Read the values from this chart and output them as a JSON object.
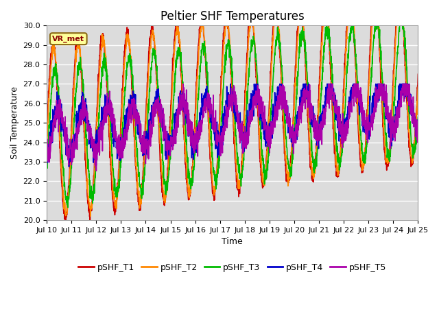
{
  "title": "Peltier SHF Temperatures",
  "ylabel": "Soil Temperature",
  "xlabel": "Time",
  "annotation": "VR_met",
  "ylim": [
    20.0,
    30.0
  ],
  "yticks": [
    20.0,
    21.0,
    22.0,
    23.0,
    24.0,
    25.0,
    26.0,
    27.0,
    28.0,
    29.0,
    30.0
  ],
  "series_names": [
    "pSHF_T1",
    "pSHF_T2",
    "pSHF_T3",
    "pSHF_T4",
    "pSHF_T5"
  ],
  "series_colors": [
    "#CC0000",
    "#FF8800",
    "#00BB00",
    "#0000CC",
    "#AA00AA"
  ],
  "series_lw": [
    1.2,
    1.2,
    1.2,
    1.2,
    1.2
  ],
  "xtick_labels": [
    "Jul 10",
    "Jul 11",
    "Jul 12",
    "Jul 13",
    "Jul 14",
    "Jul 15",
    "Jul 16",
    "Jul 17",
    "Jul 18",
    "Jul 19",
    "Jul 20",
    "Jul 21",
    "Jul 22",
    "Jul 23",
    "Jul 24",
    "Jul 25"
  ],
  "bg_color": "#DCDCDC",
  "grid_color": "#FFFFFF",
  "title_fontsize": 12,
  "label_fontsize": 9,
  "tick_fontsize": 8,
  "legend_fontsize": 9
}
